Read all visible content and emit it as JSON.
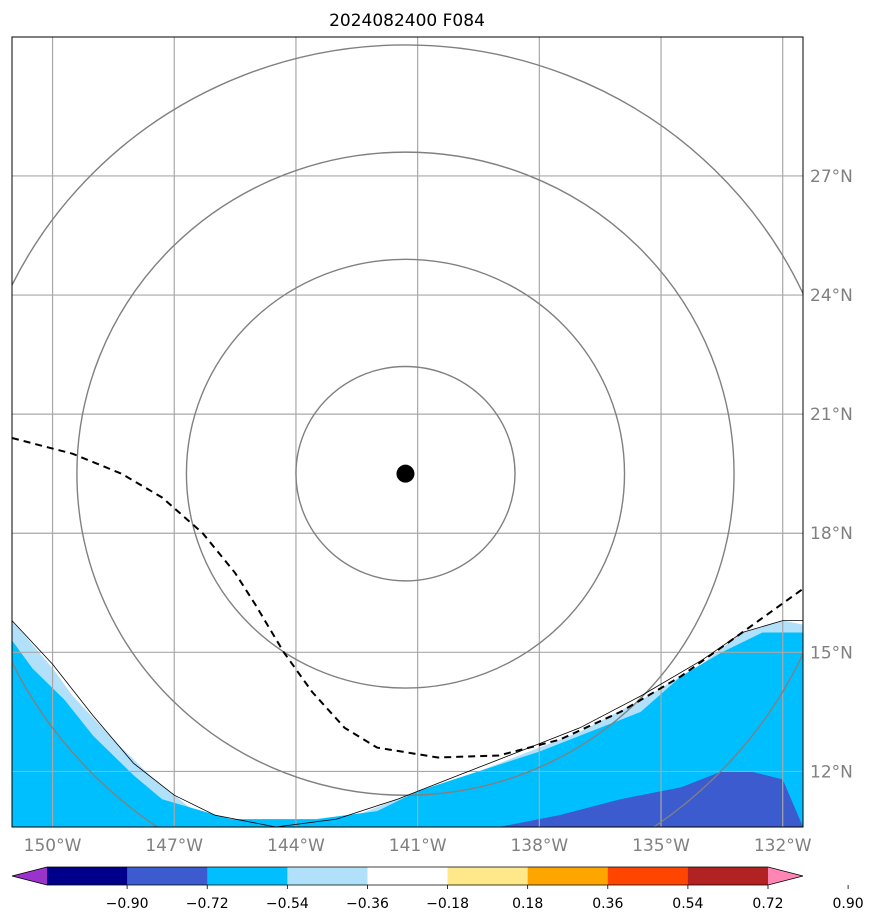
{
  "chart_data": {
    "type": "map",
    "title": "2024082400 F084",
    "projection": "lon-lat",
    "xlim": [
      -151,
      -131.5
    ],
    "ylim": [
      10.6,
      30.5
    ],
    "lon_ticks": [
      -150,
      -147,
      -144,
      -141,
      -138,
      -135,
      -132
    ],
    "lon_tick_labels": [
      "150°W",
      "147°W",
      "144°W",
      "141°W",
      "138°W",
      "135°W",
      "132°W"
    ],
    "lat_ticks": [
      12,
      15,
      18,
      21,
      24,
      27
    ],
    "lat_tick_labels": [
      "12°N",
      "15°N",
      "18°N",
      "21°N",
      "24°N",
      "27°N"
    ],
    "grid": true,
    "center_marker": {
      "lon": -141.3,
      "lat": 19.5
    },
    "range_rings_deg": [
      2.7,
      5.4,
      8.1,
      10.8
    ],
    "shading_colors": {
      "light_blue": "#b0e0fa",
      "deep_sky_blue": "#00bfff",
      "royal_blue": "#3b5bcf"
    },
    "shaded_regions": [
      {
        "level": "-0.36 to -0.18",
        "color": "light_blue",
        "boundary": [
          [
            -151,
            15.8
          ],
          [
            -150,
            14.6
          ],
          [
            -149.5,
            13.9
          ],
          [
            -148.5,
            12.8
          ],
          [
            -147.5,
            11.8
          ],
          [
            -146.5,
            11.0
          ],
          [
            -145.5,
            10.7
          ],
          [
            -144,
            10.7
          ],
          [
            -142.5,
            10.9
          ],
          [
            -141.5,
            11.3
          ],
          [
            -140,
            11.8
          ],
          [
            -138.5,
            12.4
          ],
          [
            -137,
            13.0
          ],
          [
            -135.5,
            13.8
          ],
          [
            -134,
            14.7
          ],
          [
            -133,
            15.5
          ],
          [
            -132,
            15.8
          ],
          [
            -131.5,
            15.7
          ]
        ]
      },
      {
        "level": "-0.54 to -0.36",
        "color": "deep_sky_blue",
        "boundary": [
          [
            -151,
            15.3
          ],
          [
            -150.5,
            14.6
          ],
          [
            -149.7,
            13.8
          ],
          [
            -149,
            12.9
          ],
          [
            -148,
            11.9
          ],
          [
            -147.3,
            11.3
          ],
          [
            -146.3,
            11.0
          ],
          [
            -145.6,
            10.8
          ],
          [
            -143.5,
            10.8
          ],
          [
            -142,
            11.0
          ],
          [
            -141,
            11.5
          ],
          [
            -139.5,
            12.0
          ],
          [
            -138,
            12.5
          ],
          [
            -136.5,
            13.1
          ],
          [
            -135.5,
            13.5
          ],
          [
            -134.5,
            14.4
          ],
          [
            -133.5,
            15.0
          ],
          [
            -132.5,
            15.5
          ],
          [
            -131.5,
            15.5
          ]
        ]
      },
      {
        "level": "-0.72 to -0.54",
        "color": "royal_blue",
        "boundary": [
          [
            -139,
            10.6
          ],
          [
            -137.5,
            10.9
          ],
          [
            -136,
            11.3
          ],
          [
            -134.5,
            11.6
          ],
          [
            -133.5,
            12.0
          ],
          [
            -132.8,
            12.0
          ],
          [
            -132,
            11.8
          ],
          [
            -131.5,
            10.6
          ]
        ]
      }
    ],
    "thin_contour": [
      [
        -151,
        15.8
      ],
      [
        -150,
        14.7
      ],
      [
        -149,
        13.4
      ],
      [
        -148,
        12.2
      ],
      [
        -147,
        11.4
      ],
      [
        -146,
        10.9
      ],
      [
        -144.5,
        10.6
      ],
      [
        -143,
        10.8
      ],
      [
        -141.5,
        11.3
      ],
      [
        -140,
        11.9
      ],
      [
        -138.5,
        12.5
      ],
      [
        -137,
        13.1
      ],
      [
        -135.5,
        13.9
      ],
      [
        -134,
        14.8
      ],
      [
        -133,
        15.5
      ],
      [
        -132,
        15.8
      ],
      [
        -131.5,
        15.8
      ]
    ],
    "dashed_line": [
      [
        -151,
        20.4
      ],
      [
        -149.5,
        20.0
      ],
      [
        -148.3,
        19.5
      ],
      [
        -147.3,
        18.9
      ],
      [
        -146.3,
        18.0
      ],
      [
        -145.5,
        17.0
      ],
      [
        -145,
        16.2
      ],
      [
        -144.3,
        15.0
      ],
      [
        -143.6,
        14.0
      ],
      [
        -142.8,
        13.1
      ],
      [
        -142,
        12.6
      ],
      [
        -140.5,
        12.35
      ],
      [
        -139,
        12.4
      ],
      [
        -137.5,
        12.8
      ],
      [
        -136,
        13.5
      ],
      [
        -134.5,
        14.4
      ],
      [
        -133,
        15.5
      ],
      [
        -131.5,
        16.6
      ]
    ],
    "colorbar": {
      "tick_labels": [
        "−0.90",
        "−0.72",
        "−0.54",
        "−0.36",
        "−0.18",
        "0.18",
        "0.36",
        "0.54",
        "0.72",
        "0.90"
      ],
      "colors": [
        "#9933cc",
        "#00008b",
        "#3b5bcf",
        "#00bfff",
        "#b0e0fa",
        "#ffffff",
        "#ffe88a",
        "#ffa500",
        "#ff4500",
        "#b22222",
        "#ff85b5"
      ],
      "extend": "both"
    }
  }
}
